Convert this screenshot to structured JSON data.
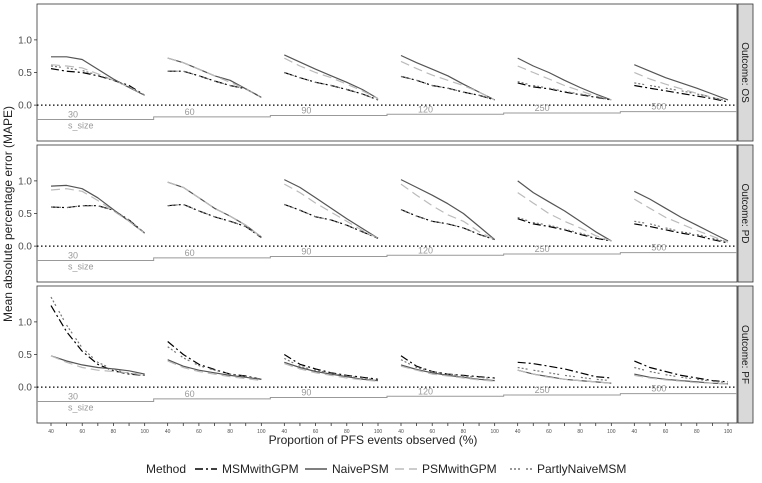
{
  "chart_data": {
    "type": "line",
    "ylabel": "Mean absolute percentage error (MAPE)",
    "xlabel": "Proportion of PFS events observed (%)",
    "ylim": [
      -0.55,
      1.55
    ],
    "yticks": [
      "0.0",
      "0.5",
      "1.0"
    ],
    "x_within_group": [
      40,
      50,
      60,
      70,
      80,
      90,
      100
    ],
    "x_tick_labels": [
      "40",
      "60",
      "80",
      "100"
    ],
    "sample_size_groups": [
      "30",
      "60",
      "90",
      "120",
      "250",
      "500"
    ],
    "s_size_label": "s_size",
    "grid": false,
    "legend_position": "bottom",
    "legend": {
      "title": "Method",
      "items": [
        {
          "name": "MSMwithGPM",
          "color": "#000000",
          "dash": "8,3,2,3"
        },
        {
          "name": "NaivePSM",
          "color": "#555555",
          "dash": ""
        },
        {
          "name": "PSMwithGPM",
          "color": "#bbbbbb",
          "dash": "9,5"
        },
        {
          "name": "PartlyNaiveMSM",
          "color": "#777777",
          "dash": "2,2,2,2,2,6"
        }
      ]
    },
    "panels": [
      {
        "facet_label": "Outcome: OS",
        "series": [
          {
            "name": "MSMwithGPM",
            "groups": [
              [
                0.56,
                0.52,
                0.5,
                0.45,
                0.38,
                0.3,
                0.15
              ],
              [
                0.52,
                0.52,
                0.45,
                0.37,
                0.3,
                0.25,
                0.12
              ],
              [
                0.5,
                0.42,
                0.35,
                0.3,
                0.24,
                0.17,
                0.08
              ],
              [
                0.44,
                0.38,
                0.3,
                0.26,
                0.2,
                0.15,
                0.08
              ],
              [
                0.34,
                0.28,
                0.25,
                0.2,
                0.16,
                0.12,
                0.08
              ],
              [
                0.3,
                0.26,
                0.22,
                0.18,
                0.14,
                0.1,
                0.05
              ]
            ]
          },
          {
            "name": "NaivePSM",
            "groups": [
              [
                0.74,
                0.74,
                0.7,
                0.55,
                0.4,
                0.27,
                0.15
              ],
              [
                0.72,
                0.65,
                0.55,
                0.45,
                0.38,
                0.25,
                0.12
              ],
              [
                0.77,
                0.66,
                0.55,
                0.45,
                0.35,
                0.24,
                0.1
              ],
              [
                0.76,
                0.65,
                0.55,
                0.45,
                0.32,
                0.2,
                0.08
              ],
              [
                0.72,
                0.6,
                0.5,
                0.38,
                0.27,
                0.17,
                0.08
              ],
              [
                0.62,
                0.52,
                0.42,
                0.34,
                0.26,
                0.17,
                0.08
              ]
            ]
          },
          {
            "name": "PSMwithGPM",
            "groups": [
              [
                0.62,
                0.6,
                0.57,
                0.48,
                0.38,
                0.28,
                0.15
              ],
              [
                0.72,
                0.65,
                0.55,
                0.45,
                0.35,
                0.25,
                0.12
              ],
              [
                0.72,
                0.6,
                0.5,
                0.42,
                0.32,
                0.22,
                0.1
              ],
              [
                0.67,
                0.56,
                0.46,
                0.38,
                0.3,
                0.2,
                0.08
              ],
              [
                0.6,
                0.5,
                0.4,
                0.3,
                0.22,
                0.14,
                0.08
              ],
              [
                0.5,
                0.4,
                0.32,
                0.25,
                0.18,
                0.12,
                0.06
              ]
            ]
          },
          {
            "name": "PartlyNaiveMSM",
            "groups": [
              [
                0.6,
                0.57,
                0.53,
                0.46,
                0.38,
                0.28,
                0.15
              ],
              [
                0.52,
                0.52,
                0.45,
                0.37,
                0.3,
                0.25,
                0.12
              ],
              [
                0.5,
                0.42,
                0.35,
                0.3,
                0.24,
                0.17,
                0.08
              ],
              [
                0.44,
                0.38,
                0.3,
                0.26,
                0.2,
                0.15,
                0.08
              ],
              [
                0.36,
                0.3,
                0.26,
                0.21,
                0.17,
                0.13,
                0.08
              ],
              [
                0.34,
                0.3,
                0.26,
                0.22,
                0.17,
                0.12,
                0.06
              ]
            ]
          }
        ]
      },
      {
        "facet_label": "Outcome: PD",
        "series": [
          {
            "name": "MSMwithGPM",
            "groups": [
              [
                0.6,
                0.59,
                0.62,
                0.62,
                0.55,
                0.4,
                0.2
              ],
              [
                0.62,
                0.64,
                0.54,
                0.45,
                0.38,
                0.3,
                0.13
              ],
              [
                0.64,
                0.55,
                0.45,
                0.4,
                0.32,
                0.22,
                0.12
              ],
              [
                0.56,
                0.46,
                0.38,
                0.34,
                0.28,
                0.18,
                0.1
              ],
              [
                0.42,
                0.34,
                0.3,
                0.25,
                0.18,
                0.12,
                0.08
              ],
              [
                0.34,
                0.3,
                0.25,
                0.2,
                0.16,
                0.1,
                0.05
              ]
            ]
          },
          {
            "name": "NaivePSM",
            "groups": [
              [
                0.92,
                0.93,
                0.88,
                0.74,
                0.56,
                0.38,
                0.2
              ],
              [
                0.98,
                0.9,
                0.74,
                0.58,
                0.46,
                0.32,
                0.14
              ],
              [
                1.02,
                0.9,
                0.74,
                0.58,
                0.42,
                0.27,
                0.12
              ],
              [
                1.02,
                0.9,
                0.78,
                0.65,
                0.5,
                0.3,
                0.1
              ],
              [
                1.0,
                0.82,
                0.68,
                0.54,
                0.38,
                0.22,
                0.08
              ],
              [
                0.84,
                0.72,
                0.58,
                0.44,
                0.32,
                0.2,
                0.08
              ]
            ]
          },
          {
            "name": "PSMwithGPM",
            "groups": [
              [
                0.86,
                0.88,
                0.84,
                0.7,
                0.54,
                0.38,
                0.2
              ],
              [
                0.98,
                0.9,
                0.74,
                0.58,
                0.46,
                0.32,
                0.14
              ],
              [
                0.95,
                0.82,
                0.66,
                0.52,
                0.38,
                0.24,
                0.12
              ],
              [
                0.95,
                0.78,
                0.62,
                0.48,
                0.38,
                0.22,
                0.1
              ],
              [
                0.82,
                0.66,
                0.5,
                0.38,
                0.28,
                0.16,
                0.08
              ],
              [
                0.72,
                0.58,
                0.44,
                0.34,
                0.24,
                0.15,
                0.06
              ]
            ]
          },
          {
            "name": "PartlyNaiveMSM",
            "groups": [
              [
                0.6,
                0.59,
                0.62,
                0.62,
                0.55,
                0.4,
                0.2
              ],
              [
                0.62,
                0.64,
                0.54,
                0.45,
                0.38,
                0.3,
                0.13
              ],
              [
                0.64,
                0.55,
                0.45,
                0.4,
                0.32,
                0.22,
                0.12
              ],
              [
                0.56,
                0.46,
                0.38,
                0.34,
                0.28,
                0.18,
                0.1
              ],
              [
                0.44,
                0.36,
                0.32,
                0.26,
                0.2,
                0.13,
                0.08
              ],
              [
                0.38,
                0.34,
                0.28,
                0.22,
                0.18,
                0.12,
                0.06
              ]
            ]
          }
        ]
      },
      {
        "facet_label": "Outcome: PF",
        "series": [
          {
            "name": "MSMwithGPM",
            "groups": [
              [
                1.25,
                0.85,
                0.55,
                0.35,
                0.25,
                0.2,
                0.18
              ],
              [
                0.7,
                0.5,
                0.35,
                0.27,
                0.2,
                0.17,
                0.12
              ],
              [
                0.5,
                0.35,
                0.28,
                0.22,
                0.18,
                0.15,
                0.12
              ],
              [
                0.48,
                0.32,
                0.24,
                0.2,
                0.18,
                0.16,
                0.14
              ],
              [
                0.38,
                0.36,
                0.32,
                0.28,
                0.22,
                0.16,
                0.14
              ],
              [
                0.4,
                0.3,
                0.24,
                0.18,
                0.14,
                0.1,
                0.08
              ]
            ]
          },
          {
            "name": "NaivePSM",
            "groups": [
              [
                0.48,
                0.4,
                0.34,
                0.3,
                0.28,
                0.25,
                0.2
              ],
              [
                0.42,
                0.32,
                0.26,
                0.22,
                0.18,
                0.15,
                0.12
              ],
              [
                0.38,
                0.3,
                0.24,
                0.2,
                0.16,
                0.12,
                0.1
              ],
              [
                0.34,
                0.27,
                0.22,
                0.18,
                0.15,
                0.12,
                0.1
              ],
              [
                0.26,
                0.2,
                0.16,
                0.12,
                0.1,
                0.08,
                0.06
              ],
              [
                0.2,
                0.15,
                0.12,
                0.1,
                0.08,
                0.06,
                0.05
              ]
            ]
          },
          {
            "name": "PSMwithGPM",
            "groups": [
              [
                0.48,
                0.38,
                0.3,
                0.26,
                0.24,
                0.22,
                0.18
              ],
              [
                0.4,
                0.3,
                0.24,
                0.2,
                0.16,
                0.13,
                0.1
              ],
              [
                0.36,
                0.28,
                0.22,
                0.18,
                0.14,
                0.11,
                0.09
              ],
              [
                0.32,
                0.26,
                0.2,
                0.17,
                0.14,
                0.11,
                0.09
              ],
              [
                0.26,
                0.2,
                0.15,
                0.12,
                0.1,
                0.08,
                0.06
              ],
              [
                0.18,
                0.14,
                0.11,
                0.09,
                0.07,
                0.06,
                0.05
              ]
            ]
          },
          {
            "name": "PartlyNaiveMSM",
            "groups": [
              [
                1.38,
                0.95,
                0.6,
                0.38,
                0.27,
                0.21,
                0.18
              ],
              [
                0.62,
                0.45,
                0.33,
                0.26,
                0.2,
                0.16,
                0.12
              ],
              [
                0.44,
                0.32,
                0.26,
                0.21,
                0.17,
                0.14,
                0.11
              ],
              [
                0.42,
                0.3,
                0.24,
                0.2,
                0.17,
                0.15,
                0.13
              ],
              [
                0.3,
                0.26,
                0.22,
                0.18,
                0.15,
                0.12,
                0.1
              ],
              [
                0.3,
                0.24,
                0.19,
                0.15,
                0.12,
                0.09,
                0.07
              ]
            ]
          }
        ]
      }
    ]
  }
}
